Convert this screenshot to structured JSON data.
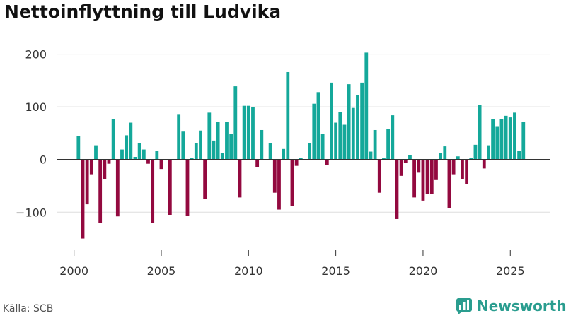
{
  "title": "Nettoinflyttning till Ludvika",
  "source": "Källa: SCB",
  "brand": {
    "name": "Newsworthy",
    "icon": "newsworthy-logo-icon"
  },
  "colors": {
    "positive": "#14a89a",
    "negative": "#93093f",
    "grid": "#dddddd",
    "zero": "#333333"
  },
  "chart_data": {
    "type": "bar",
    "title": "Nettoinflyttning till Ludvika",
    "xlabel": "",
    "ylabel": "",
    "frequency": "quarterly",
    "start": 2000.25,
    "step": 0.25,
    "xlim": [
      1999.0,
      2027.3
    ],
    "ylim": [
      -160,
      225
    ],
    "yticks": [
      -100,
      0,
      100,
      200
    ],
    "ytick_labels": [
      "−100",
      "0",
      "100",
      "200"
    ],
    "xticks": [
      2000,
      2005,
      2010,
      2015,
      2020,
      2025
    ],
    "xtick_labels": [
      "2000",
      "2005",
      "2010",
      "2015",
      "2020",
      "2025"
    ],
    "grid": true,
    "values": [
      45,
      -150,
      -85,
      -28,
      27,
      -120,
      -37,
      -8,
      77,
      -108,
      19,
      46,
      70,
      5,
      31,
      19,
      -8,
      -120,
      16,
      -18,
      0,
      -105,
      0,
      85,
      53,
      -107,
      3,
      31,
      55,
      -75,
      89,
      36,
      71,
      13,
      71,
      49,
      139,
      -72,
      102,
      102,
      100,
      -15,
      56,
      0,
      31,
      -63,
      -95,
      20,
      166,
      -88,
      -12,
      3,
      0,
      31,
      106,
      128,
      49,
      -10,
      146,
      70,
      90,
      66,
      143,
      98,
      123,
      146,
      203,
      15,
      56,
      -63,
      3,
      58,
      84,
      -113,
      -31,
      -7,
      8,
      -72,
      -25,
      -78,
      -65,
      -65,
      -39,
      13,
      25,
      -92,
      -28,
      6,
      -37,
      -47,
      3,
      28,
      104,
      -17,
      27,
      77,
      62,
      77,
      83,
      80,
      89,
      17,
      71
    ]
  }
}
